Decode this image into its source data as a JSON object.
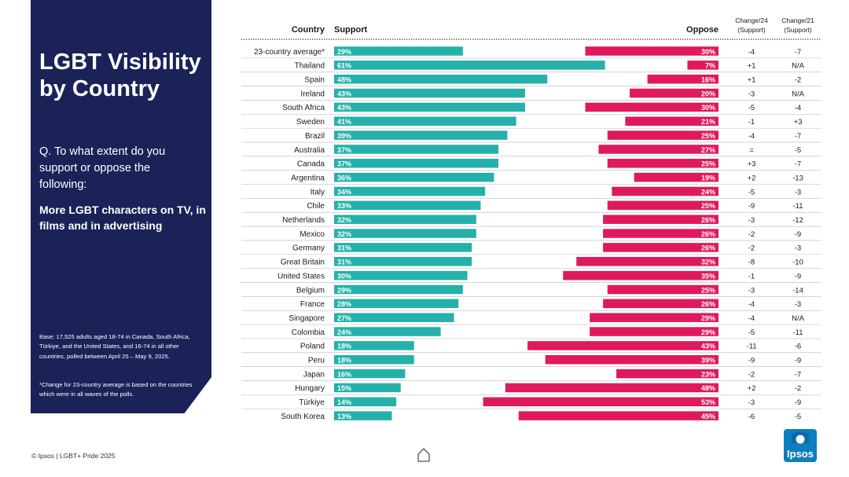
{
  "panel": {
    "title": "LGBT Visibility by Country",
    "question": "Q. To what extent do you support or oppose the following:",
    "statement": "More LGBT characters on TV, in films and in advertising",
    "base_note": "Base: 17,525 adults aged 18-74 in Canada, South Africa, Türkiye, and the United States, and 16-74 in all other countries, polled between April 25 – May 9, 2025.",
    "change_note": "*Change for 23-country average is based on the countries which were in all waves of the polls."
  },
  "footer": {
    "text": "© Ipsos | LGBT+ Pride 2025"
  },
  "logo": {
    "text": "Ipsos"
  },
  "colors": {
    "support": "#25b1a9",
    "oppose": "#e0195c",
    "navy": "#1a2258",
    "logo": "#0d7fc0"
  },
  "chart_data": {
    "type": "bar",
    "title": "More LGBT characters on TV, in films and in advertising",
    "headers": {
      "country": "Country",
      "support": "Support",
      "oppose": "Oppose",
      "change24": [
        "Change/24",
        "(Support)"
      ],
      "change21": [
        "Change/21",
        "(Support)"
      ]
    },
    "categories": [
      "23-country average*",
      "Thailand",
      "Spain",
      "Ireland",
      "South Africa",
      "Sweden",
      "Brazil",
      "Australia",
      "Canada",
      "Argentina",
      "Italy",
      "Chile",
      "Netherlands",
      "Mexico",
      "Germany",
      "Great Britain",
      "United States",
      "Belgium",
      "France",
      "Singapore",
      "Colombia",
      "Poland",
      "Peru",
      "Japan",
      "Hungary",
      "Türkiye",
      "South Korea"
    ],
    "series": [
      {
        "name": "Support",
        "values": [
          29,
          61,
          48,
          43,
          43,
          41,
          39,
          37,
          37,
          36,
          34,
          33,
          32,
          32,
          31,
          31,
          30,
          29,
          28,
          27,
          24,
          18,
          18,
          16,
          15,
          14,
          13
        ]
      },
      {
        "name": "Oppose",
        "values": [
          30,
          7,
          16,
          20,
          30,
          21,
          25,
          27,
          25,
          19,
          24,
          25,
          26,
          26,
          26,
          32,
          35,
          25,
          26,
          29,
          29,
          43,
          39,
          23,
          48,
          53,
          45
        ]
      }
    ],
    "change24": [
      "-4",
      "+1",
      "+1",
      "-3",
      "-5",
      "-1",
      "-4",
      "=",
      "+3",
      "+2",
      "-5",
      "-9",
      "-3",
      "-2",
      "-2",
      "-8",
      "-1",
      "-3",
      "-4",
      "-4",
      "-5",
      "-11",
      "-9",
      "-2",
      "+2",
      "-3",
      "-6"
    ],
    "change21": [
      "-7",
      "N/A",
      "-2",
      "N/A",
      "-4",
      "+3",
      "-7",
      "-5",
      "-7",
      "-13",
      "-3",
      "-11",
      "-12",
      "-9",
      "-3",
      "-10",
      "-9",
      "-14",
      "-3",
      "N/A",
      "-11",
      "-6",
      "-9",
      "-7",
      "-2",
      "-9",
      "-5"
    ],
    "value_suffix": "%",
    "xlim": [
      0,
      100
    ]
  }
}
